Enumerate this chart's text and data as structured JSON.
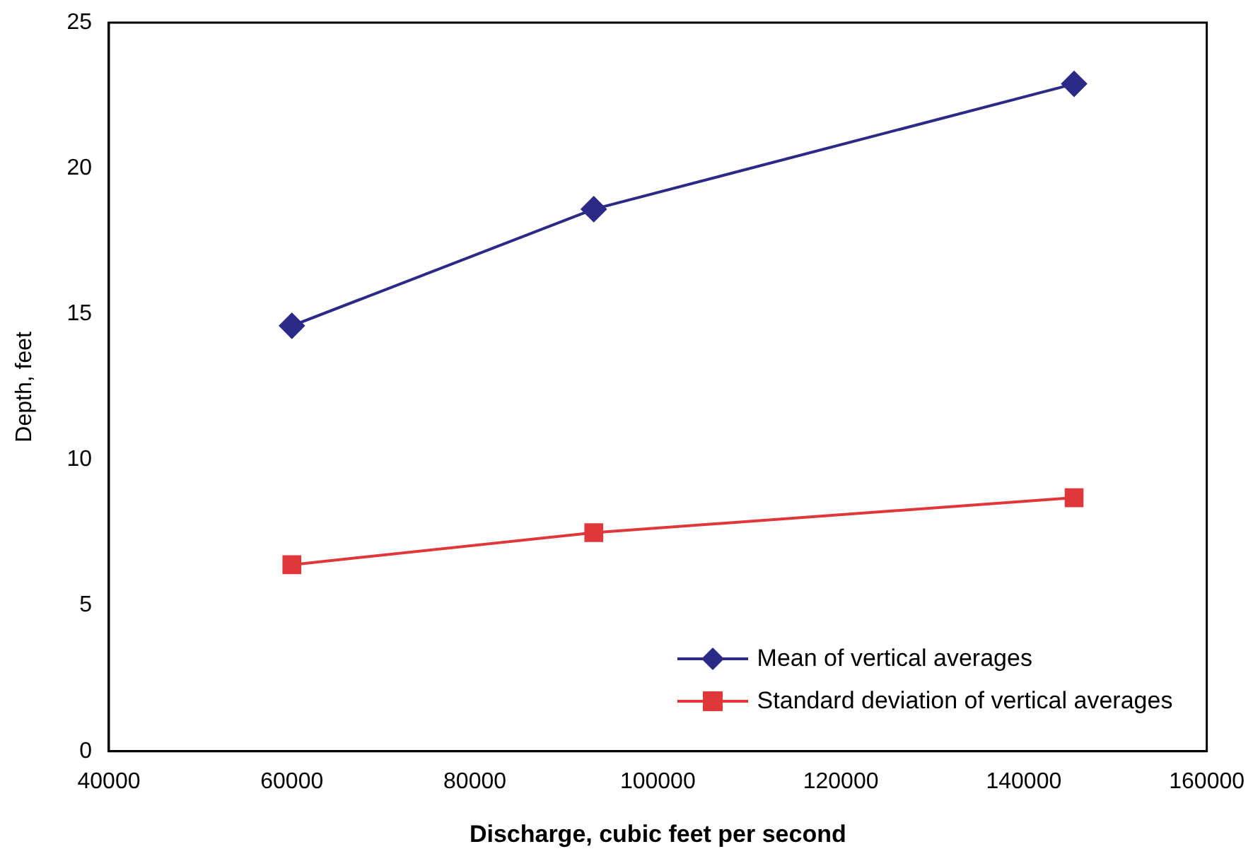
{
  "chart_data": {
    "type": "line",
    "xlabel": "Discharge, cubic feet per second",
    "ylabel": "Depth, feet",
    "xlim": [
      40000,
      160000
    ],
    "xticks": [
      40000,
      60000,
      80000,
      100000,
      120000,
      140000,
      160000
    ],
    "ylim": [
      0,
      25
    ],
    "yticks": [
      0,
      5,
      10,
      15,
      20,
      25
    ],
    "x": [
      60000,
      93000,
      145500
    ],
    "series": [
      {
        "name": "Mean of vertical averages",
        "color": "#2b2a86",
        "marker": "diamond",
        "values": [
          14.6,
          18.6,
          22.9
        ]
      },
      {
        "name": "Standard deviation of vertical averages",
        "color": "#e0383a",
        "marker": "square",
        "values": [
          6.4,
          7.5,
          8.7
        ]
      }
    ],
    "grid": false,
    "legend": "bottom right",
    "line_style": "solid"
  }
}
